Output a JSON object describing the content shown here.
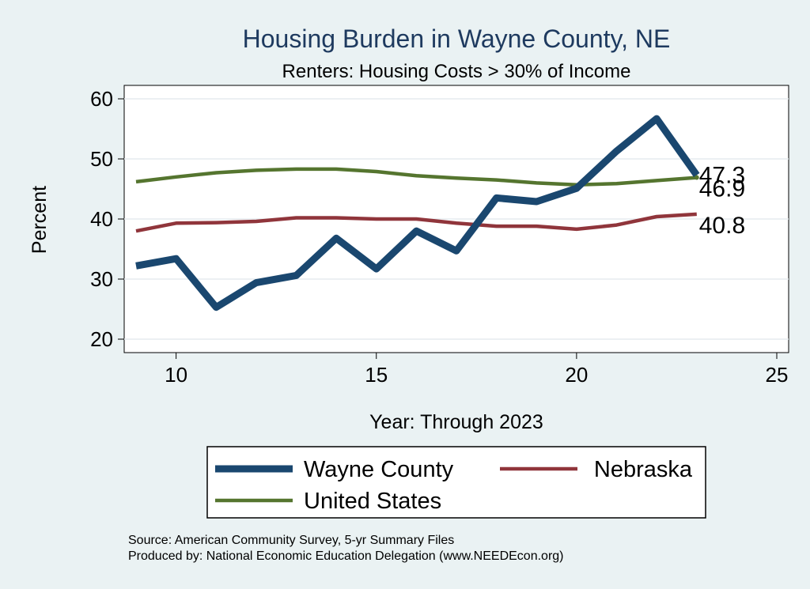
{
  "chart_data": {
    "type": "line",
    "title": "Housing Burden in Wayne County, NE",
    "subtitle": "Renters: Housing Costs > 30% of Income",
    "xlabel": "Year: Through 2023",
    "ylabel": "Percent",
    "xlim": [
      9,
      25
    ],
    "ylim": [
      20,
      60
    ],
    "xticks": [
      10,
      15,
      20,
      25
    ],
    "yticks": [
      20,
      30,
      40,
      50,
      60
    ],
    "grid": "horizontal",
    "series": [
      {
        "name": "Wayne County",
        "color": "#1a476f",
        "x": [
          9,
          10,
          11,
          12,
          13,
          14,
          15,
          16,
          17,
          18,
          19,
          20,
          21,
          22,
          23
        ],
        "values": [
          32.2,
          33.4,
          25.3,
          29.4,
          30.6,
          36.8,
          31.7,
          38.0,
          34.7,
          43.5,
          42.9,
          45.1,
          51.3,
          56.7,
          47.3
        ]
      },
      {
        "name": "Nebraska",
        "color": "#90353b",
        "x": [
          9,
          10,
          11,
          12,
          13,
          14,
          15,
          16,
          17,
          18,
          19,
          20,
          21,
          22,
          23
        ],
        "values": [
          38.0,
          39.3,
          39.4,
          39.6,
          40.2,
          40.2,
          40.0,
          40.0,
          39.3,
          38.8,
          38.8,
          38.3,
          39.0,
          40.4,
          40.8
        ]
      },
      {
        "name": "United States",
        "color": "#55752f",
        "x": [
          9,
          10,
          11,
          12,
          13,
          14,
          15,
          16,
          17,
          18,
          19,
          20,
          21,
          22,
          23
        ],
        "values": [
          46.2,
          47.0,
          47.7,
          48.1,
          48.3,
          48.3,
          47.9,
          47.2,
          46.8,
          46.5,
          46.0,
          45.7,
          45.9,
          46.4,
          46.9
        ]
      }
    ],
    "end_labels": [
      "47.3",
      "46.9",
      "40.8"
    ],
    "legend": {
      "position": "bottom",
      "entries": [
        "Wayne County",
        "Nebraska",
        "United States"
      ]
    },
    "notes": [
      "Source: American Community Survey, 5-yr Summary Files",
      "Produced by: National Economic Education Delegation (www.NEEDEcon.org)"
    ]
  }
}
